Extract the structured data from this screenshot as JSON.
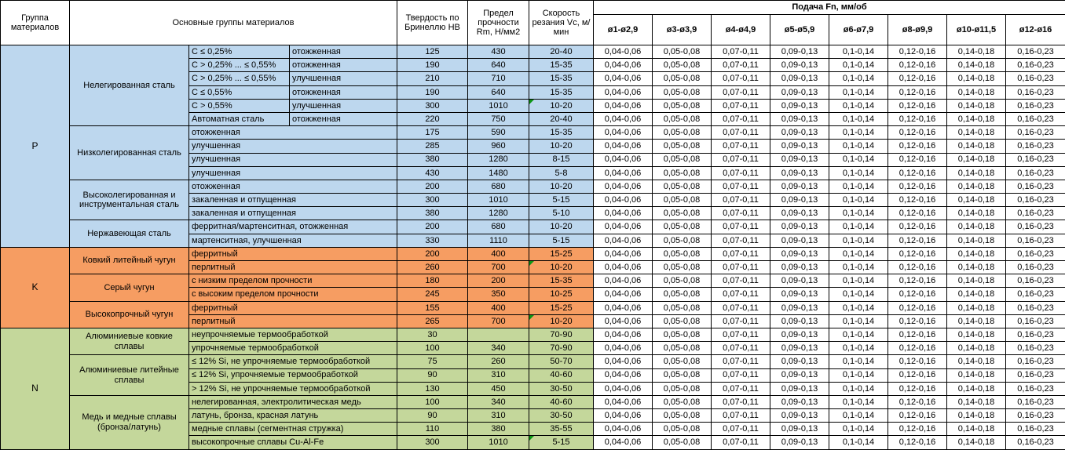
{
  "colors": {
    "group_p": "#BDD7EE",
    "group_k": "#F69D62",
    "group_n": "#C4D79B",
    "marker": "#0D9616",
    "border": "#000000",
    "header_bg": "#FFFFFF"
  },
  "header": {
    "col_group": "Группа материалов",
    "col_materials": "Основные группы материалов",
    "col_hardness": "Твердость по Бринеллю HB",
    "col_strength": "Предел прочности Rm, Н/мм2",
    "col_speed": "Скорость резания Vc, м/мин",
    "col_feed": "Подача Fn, мм/об",
    "diameters": [
      "ø1-ø2,9",
      "ø3-ø3,9",
      "ø4-ø4,9",
      "ø5-ø5,9",
      "ø6-ø7,9",
      "ø8-ø9,9",
      "ø10-ø11,5",
      "ø12-ø16"
    ]
  },
  "feed_values": [
    "0,04-0,06",
    "0,05-0,08",
    "0,07-0,11",
    "0,09-0,13",
    "0,1-0,14",
    "0,12-0,16",
    "0,14-0,18",
    "0,16-0,23"
  ],
  "groups": [
    {
      "code": "P",
      "color": "#BDD7EE",
      "families": [
        {
          "name": "Нелегированная сталь",
          "rows": [
            {
              "c1": "C ≤ 0,25%",
              "c2": "отожженная",
              "hb": "125",
              "rm": "430",
              "vc": "20-40"
            },
            {
              "c1": "C > 0,25% ... ≤ 0,55%",
              "c2": "отожженная",
              "hb": "190",
              "rm": "640",
              "vc": "15-35"
            },
            {
              "c1": "C > 0,25% ... ≤ 0,55%",
              "c2": "улучшенная",
              "hb": "210",
              "rm": "710",
              "vc": "15-35"
            },
            {
              "c1": "C ≤ 0,55%",
              "c2": "отожженная",
              "hb": "190",
              "rm": "640",
              "vc": "15-35"
            },
            {
              "c1": "C > 0,55%",
              "c2": "улучшенная",
              "hb": "300",
              "rm": "1010",
              "vc": "10-20",
              "marker": true
            },
            {
              "c1": "Автоматная сталь",
              "c2": "отожженная",
              "hb": "220",
              "rm": "750",
              "vc": "20-40"
            }
          ]
        },
        {
          "name": "Низколегированная сталь",
          "rows": [
            {
              "c1": "отожженная",
              "hb": "175",
              "rm": "590",
              "vc": "15-35"
            },
            {
              "c1": "улучшенная",
              "hb": "285",
              "rm": "960",
              "vc": "10-20"
            },
            {
              "c1": "улучшенная",
              "hb": "380",
              "rm": "1280",
              "vc": "8-15"
            },
            {
              "c1": "улучшенная",
              "hb": "430",
              "rm": "1480",
              "vc": "5-8"
            }
          ]
        },
        {
          "name": "Высоколегированная и инструментальная сталь",
          "rows": [
            {
              "c1": "отожженная",
              "hb": "200",
              "rm": "680",
              "vc": "10-20"
            },
            {
              "c1": "закаленная и отпущенная",
              "hb": "300",
              "rm": "1010",
              "vc": "5-15"
            },
            {
              "c1": "закаленная и отпущенная",
              "hb": "380",
              "rm": "1280",
              "vc": "5-10"
            }
          ]
        },
        {
          "name": "Нержавеющая сталь",
          "rows": [
            {
              "c1": "ферритная/мартенситная, отожженная",
              "hb": "200",
              "rm": "680",
              "vc": "10-20"
            },
            {
              "c1": "мартенситная, улучшенная",
              "hb": "330",
              "rm": "1110",
              "vc": "5-15"
            }
          ]
        }
      ]
    },
    {
      "code": "K",
      "color": "#F69D62",
      "families": [
        {
          "name": "Ковкий литейный чугун",
          "rows": [
            {
              "c1": "ферритный",
              "hb": "200",
              "rm": "400",
              "vc": "15-25"
            },
            {
              "c1": "перлитный",
              "hb": "260",
              "rm": "700",
              "vc": "10-20",
              "marker": true
            }
          ]
        },
        {
          "name": "Серый чугун",
          "rows": [
            {
              "c1": "с низким пределом прочности",
              "hb": "180",
              "rm": "200",
              "vc": "15-35"
            },
            {
              "c1": "с высоким пределом прочности",
              "hb": "245",
              "rm": "350",
              "vc": "10-25"
            }
          ]
        },
        {
          "name": "Высокопрочный чугун",
          "rows": [
            {
              "c1": "ферритный",
              "hb": "155",
              "rm": "400",
              "vc": "15-25"
            },
            {
              "c1": "перлитный",
              "hb": "265",
              "rm": "700",
              "vc": "10-20",
              "marker": true
            }
          ]
        }
      ]
    },
    {
      "code": "N",
      "color": "#C4D79B",
      "families": [
        {
          "name": "Алюминиевые ковкие сплавы",
          "rows": [
            {
              "c1": "неупрочняемые термообработкой",
              "hb": "30",
              "rm": "",
              "vc": "70-90"
            },
            {
              "c1": "упрочняемые термообработкой",
              "hb": "100",
              "rm": "340",
              "vc": "70-90"
            }
          ]
        },
        {
          "name": "Алюминиевые литейные сплавы",
          "rows": [
            {
              "c1": "≤ 12% Si, не упрочняемые термообработкой",
              "hb": "75",
              "rm": "260",
              "vc": "50-70"
            },
            {
              "c1": "≤ 12% Si, упрочняемые термообработкой",
              "hb": "90",
              "rm": "310",
              "vc": "40-60"
            },
            {
              "c1": "> 12% Si, не упрочняемые термообработкой",
              "hb": "130",
              "rm": "450",
              "vc": "30-50"
            }
          ]
        },
        {
          "name": "Медь и медные сплавы (бронза/латунь)",
          "rows": [
            {
              "c1": "нелегированная, электролитическая медь",
              "hb": "100",
              "rm": "340",
              "vc": "40-60"
            },
            {
              "c1": "латунь, бронза, красная латунь",
              "hb": "90",
              "rm": "310",
              "vc": "30-50"
            },
            {
              "c1": "медные сплавы (сегментная стружка)",
              "hb": "110",
              "rm": "380",
              "vc": "35-55"
            },
            {
              "c1": "высокопрочные сплавы Cu-Al-Fe",
              "hb": "300",
              "rm": "1010",
              "vc": "5-15",
              "marker": true
            }
          ]
        }
      ]
    }
  ]
}
